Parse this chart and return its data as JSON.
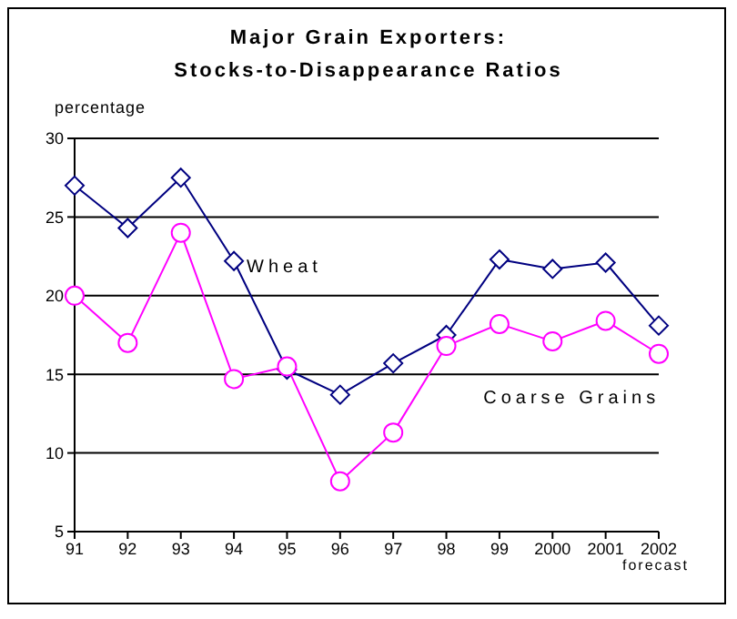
{
  "chart_data": {
    "type": "line",
    "title": "Major Grain Exporters:",
    "subtitle": "Stocks-to-Disappearance Ratios",
    "ylabel": "percentage",
    "categories": [
      "91",
      "92",
      "93",
      "94",
      "95",
      "96",
      "97",
      "98",
      "99",
      "2000",
      "2001",
      "2002"
    ],
    "series": [
      {
        "name": "Wheat",
        "color": "#000080",
        "marker": "diamond",
        "values": [
          27,
          24.3,
          27.5,
          22.2,
          15.3,
          13.7,
          15.7,
          17.5,
          22.3,
          21.7,
          22.1,
          18.1
        ]
      },
      {
        "name": "Coarse Grains",
        "color": "#ff00ff",
        "marker": "circle",
        "values": [
          20,
          17,
          24,
          14.7,
          15.5,
          8.2,
          11.3,
          16.8,
          18.2,
          17.1,
          18.4,
          16.3
        ]
      }
    ],
    "ylim": [
      5,
      30
    ],
    "yticks": [
      5,
      10,
      15,
      20,
      25,
      30
    ],
    "grid": "y",
    "legend": false,
    "annotations": [
      "forecast"
    ]
  }
}
